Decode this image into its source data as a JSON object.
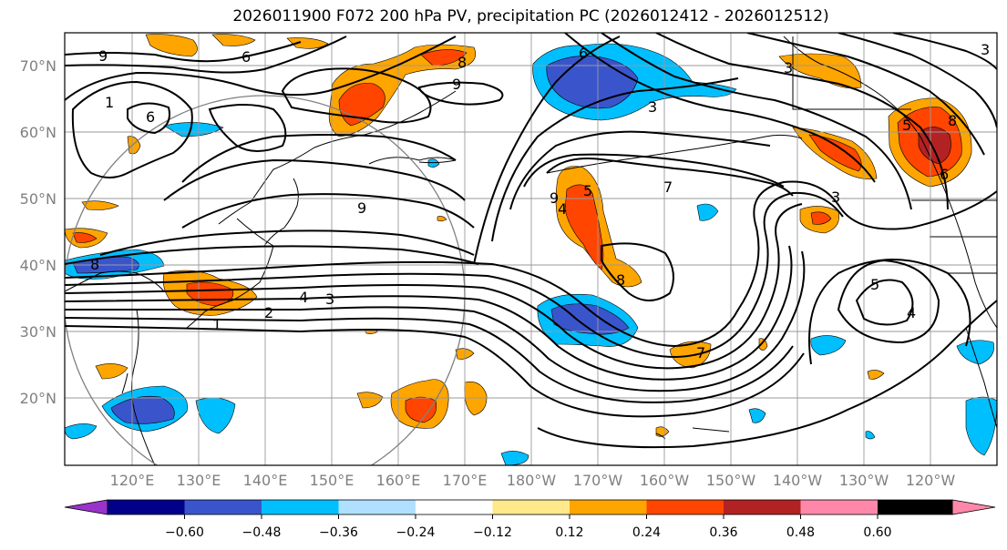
{
  "title": "2026011900 F072 200 hPa PV, precipitation PC (2026012412 - 2026012512)",
  "lat_labels": [
    "70°N",
    "60°N",
    "50°N",
    "40°N",
    "30°N",
    "20°N"
  ],
  "lon_labels": [
    "120°E",
    "130°E",
    "140°E",
    "150°E",
    "160°E",
    "170°E",
    "180°W",
    "170°W",
    "160°W",
    "150°W",
    "140°W",
    "130°W",
    "120°W"
  ],
  "colorbar": {
    "tick_labels": [
      "−0.60",
      "−0.48",
      "−0.36",
      "−0.24",
      "−0.12",
      "0.12",
      "0.24",
      "0.36",
      "0.48",
      "0.60"
    ],
    "colors": [
      "#9933cc",
      "#00008b",
      "#3a55cc",
      "#00bfff",
      "#b0e0ff",
      "#ffffff",
      "#ffe98a",
      "#ffa500",
      "#ff4500",
      "#b22222",
      "#ff88aa"
    ]
  },
  "pv_contour_labels": [
    "9",
    "6",
    "9",
    "1",
    "6",
    "8",
    "9",
    "6",
    "3",
    "3",
    "7",
    "9",
    "4",
    "5",
    "8",
    "7",
    "3",
    "6",
    "5",
    "8",
    "3",
    "4",
    "3",
    "2",
    "1",
    "8",
    "5",
    "4"
  ]
}
